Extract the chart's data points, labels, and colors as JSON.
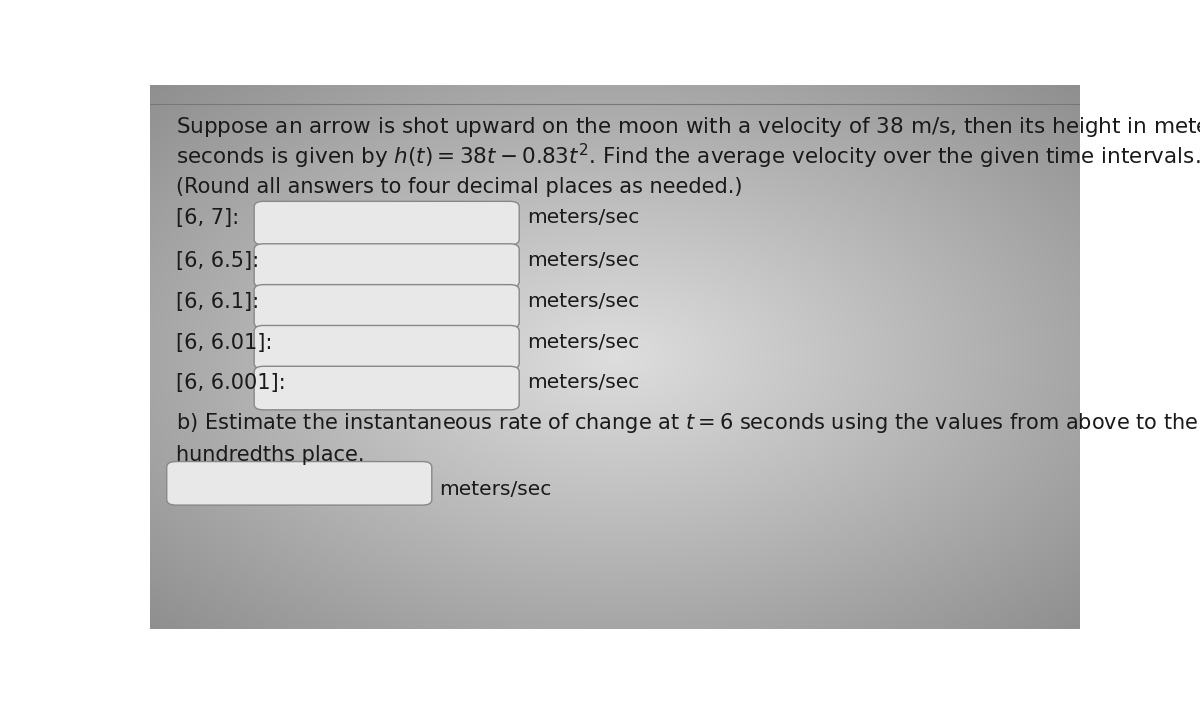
{
  "bg_color_center": "#d8d8d8",
  "bg_color_edge": "#909090",
  "text_color": "#1a1a1a",
  "round_note": "(Round all answers to four decimal places as needed.)",
  "intervals": [
    "[6, 7]:",
    "[6, 6.5]:",
    "[6, 6.1]:",
    "[6, 6.01]:",
    "[6, 6.001]:"
  ],
  "units_label": "meters/sec",
  "box_fill": "#e8e8e8",
  "box_edge": "#888888",
  "font_size_title": 15.5,
  "font_size_body": 15.0,
  "font_size_label": 14.5
}
